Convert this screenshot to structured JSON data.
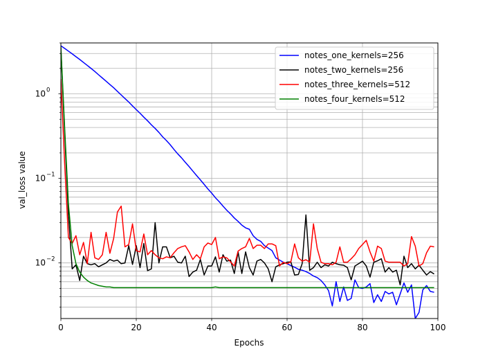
{
  "chart_data": {
    "type": "line",
    "title": "",
    "xlabel": "Epochs",
    "ylabel": "val_loss value",
    "xlim": [
      0,
      100
    ],
    "ylim": [
      0.0022,
      4.0
    ],
    "yscale": "log",
    "grid": true,
    "legend_position": "top-right",
    "xticks": [
      0,
      20,
      40,
      60,
      80,
      100
    ],
    "yticks": [
      {
        "value": 0.01,
        "base": "10",
        "exp": "−2"
      },
      {
        "value": 0.1,
        "base": "10",
        "exp": "−1"
      },
      {
        "value": 1,
        "base": "10",
        "exp": "0"
      }
    ],
    "series": [
      {
        "name": "notes_one_kernels=256",
        "color": "#0000ff",
        "x": [
          0,
          1,
          2,
          3,
          4,
          5,
          6,
          7,
          8,
          9,
          10,
          11,
          12,
          13,
          14,
          15,
          16,
          17,
          18,
          19,
          20,
          21,
          22,
          23,
          24,
          25,
          26,
          27,
          28,
          29,
          30,
          31,
          32,
          33,
          34,
          35,
          36,
          37,
          38,
          39,
          40,
          41,
          42,
          43,
          44,
          45,
          46,
          47,
          48,
          49,
          50,
          51,
          52,
          53,
          54,
          55,
          56,
          57,
          58,
          59,
          60,
          61,
          62,
          63,
          64,
          65,
          66,
          67,
          68,
          69,
          70,
          71,
          72,
          73,
          74,
          75,
          76,
          77,
          78,
          79,
          80,
          81,
          82,
          83,
          84,
          85,
          86,
          87,
          88,
          89,
          90,
          91,
          92,
          93,
          94,
          95,
          96,
          97,
          98,
          99
        ],
        "y": [
          3.7,
          3.45,
          3.2,
          2.97,
          2.75,
          2.55,
          2.35,
          2.17,
          2.0,
          1.84,
          1.68,
          1.54,
          1.41,
          1.29,
          1.18,
          1.07,
          0.97,
          0.88,
          0.8,
          0.72,
          0.65,
          0.59,
          0.53,
          0.48,
          0.43,
          0.39,
          0.35,
          0.31,
          0.28,
          0.25,
          0.22,
          0.195,
          0.175,
          0.155,
          0.138,
          0.122,
          0.108,
          0.096,
          0.085,
          0.075,
          0.067,
          0.059,
          0.053,
          0.047,
          0.042,
          0.038,
          0.034,
          0.031,
          0.028,
          0.026,
          0.025,
          0.021,
          0.019,
          0.018,
          0.016,
          0.015,
          0.014,
          0.0115,
          0.0108,
          0.0102,
          0.0098,
          0.0093,
          0.0089,
          0.0084,
          0.0082,
          0.0079,
          0.0075,
          0.007,
          0.0067,
          0.0062,
          0.0055,
          0.0047,
          0.0031,
          0.006,
          0.0035,
          0.0052,
          0.0036,
          0.0038,
          0.0063,
          0.0051,
          0.005,
          0.0052,
          0.0057,
          0.0034,
          0.0042,
          0.0035,
          0.0046,
          0.0043,
          0.0045,
          0.0032,
          0.0043,
          0.0058,
          0.0045,
          0.0055,
          0.0022,
          0.0026,
          0.0048,
          0.0054,
          0.0046,
          0.0045
        ]
      },
      {
        "name": "notes_two_kernels=256",
        "color": "#000000",
        "x": [
          0,
          1,
          2,
          3,
          4,
          5,
          6,
          7,
          8,
          9,
          10,
          11,
          12,
          13,
          14,
          15,
          16,
          17,
          18,
          19,
          20,
          21,
          22,
          23,
          24,
          25,
          26,
          27,
          28,
          29,
          30,
          31,
          32,
          33,
          34,
          35,
          36,
          37,
          38,
          39,
          40,
          41,
          42,
          43,
          44,
          45,
          46,
          47,
          48,
          49,
          50,
          51,
          52,
          53,
          54,
          55,
          56,
          57,
          58,
          59,
          60,
          61,
          62,
          63,
          64,
          65,
          66,
          67,
          68,
          69,
          70,
          71,
          72,
          73,
          74,
          75,
          76,
          77,
          78,
          79,
          80,
          81,
          82,
          83,
          84,
          85,
          86,
          87,
          88,
          89,
          90,
          91,
          92,
          93,
          94,
          95,
          96,
          97,
          98,
          99
        ],
        "y": [
          3.5,
          0.35,
          0.038,
          0.0085,
          0.0095,
          0.0062,
          0.012,
          0.0098,
          0.0095,
          0.0098,
          0.009,
          0.0095,
          0.01,
          0.011,
          0.0105,
          0.0108,
          0.0098,
          0.01,
          0.016,
          0.0096,
          0.016,
          0.0088,
          0.017,
          0.0081,
          0.0085,
          0.03,
          0.01,
          0.0155,
          0.0155,
          0.0115,
          0.012,
          0.0102,
          0.01,
          0.012,
          0.0069,
          0.0078,
          0.0082,
          0.011,
          0.0072,
          0.0092,
          0.0092,
          0.0118,
          0.0078,
          0.0125,
          0.0105,
          0.0108,
          0.0075,
          0.0135,
          0.0075,
          0.0135,
          0.0088,
          0.0072,
          0.0105,
          0.011,
          0.01,
          0.0085,
          0.006,
          0.009,
          0.0095,
          0.0098,
          0.0102,
          0.0103,
          0.0072,
          0.0073,
          0.0098,
          0.037,
          0.0082,
          0.0088,
          0.0102,
          0.0088,
          0.0095,
          0.0092,
          0.0102,
          0.0098,
          0.0095,
          0.0094,
          0.0088,
          0.0063,
          0.0092,
          0.0098,
          0.0105,
          0.0092,
          0.0068,
          0.0102,
          0.0106,
          0.0112,
          0.0078,
          0.0088,
          0.0078,
          0.0082,
          0.0055,
          0.012,
          0.0088,
          0.0098,
          0.0085,
          0.0094,
          0.0082,
          0.0072,
          0.0079,
          0.0074
        ]
      },
      {
        "name": "notes_three_kernels=512",
        "color": "#ff0000",
        "x": [
          0,
          1,
          2,
          3,
          4,
          5,
          6,
          7,
          8,
          9,
          10,
          11,
          12,
          13,
          14,
          15,
          16,
          17,
          18,
          19,
          20,
          21,
          22,
          23,
          24,
          25,
          26,
          27,
          28,
          29,
          30,
          31,
          32,
          33,
          34,
          35,
          36,
          37,
          38,
          39,
          40,
          41,
          42,
          43,
          44,
          45,
          46,
          47,
          48,
          49,
          50,
          51,
          52,
          53,
          54,
          55,
          56,
          57,
          58,
          59,
          60,
          61,
          62,
          63,
          64,
          65,
          66,
          67,
          68,
          69,
          70,
          71,
          72,
          73,
          74,
          75,
          76,
          77,
          78,
          79,
          80,
          81,
          82,
          83,
          84,
          85,
          86,
          87,
          88,
          89,
          90,
          91,
          92,
          93,
          94,
          95,
          96,
          97,
          98,
          99
        ],
        "y": [
          1.5,
          0.15,
          0.02,
          0.017,
          0.021,
          0.0125,
          0.0175,
          0.0098,
          0.023,
          0.0115,
          0.011,
          0.0125,
          0.023,
          0.013,
          0.0195,
          0.04,
          0.047,
          0.0155,
          0.0165,
          0.029,
          0.014,
          0.0135,
          0.022,
          0.0125,
          0.014,
          0.0125,
          0.0115,
          0.0112,
          0.0118,
          0.0115,
          0.0132,
          0.0148,
          0.0155,
          0.016,
          0.0135,
          0.011,
          0.0125,
          0.0112,
          0.0155,
          0.0172,
          0.0165,
          0.02,
          0.0112,
          0.0118,
          0.0115,
          0.0103,
          0.0092,
          0.0138,
          0.0148,
          0.0155,
          0.0195,
          0.0148,
          0.0162,
          0.0162,
          0.0148,
          0.0168,
          0.0168,
          0.016,
          0.0092,
          0.0102,
          0.0098,
          0.0103,
          0.0168,
          0.0115,
          0.0105,
          0.0109,
          0.0102,
          0.029,
          0.0148,
          0.0102,
          0.0098,
          0.0098,
          0.0095,
          0.0102,
          0.0155,
          0.0102,
          0.0102,
          0.0112,
          0.0125,
          0.0148,
          0.0165,
          0.0185,
          0.0135,
          0.0105,
          0.0158,
          0.0148,
          0.0105,
          0.0102,
          0.0102,
          0.0102,
          0.0102,
          0.0092,
          0.0098,
          0.0205,
          0.0158,
          0.0092,
          0.0098,
          0.0132,
          0.0158,
          0.0155
        ]
      },
      {
        "name": "notes_four_kernels=512",
        "color": "#008000",
        "x": [
          0,
          1,
          2,
          3,
          4,
          5,
          6,
          7,
          8,
          9,
          10,
          11,
          12,
          13,
          14,
          15,
          16,
          17,
          18,
          19,
          20,
          21,
          22,
          23,
          24,
          25,
          26,
          27,
          28,
          29,
          30,
          31,
          32,
          33,
          34,
          35,
          36,
          37,
          38,
          39,
          40,
          41,
          42,
          43,
          44,
          45,
          46,
          47,
          48,
          49,
          50,
          51,
          52,
          53,
          54,
          55,
          56,
          57,
          58,
          59,
          60,
          61,
          62,
          63,
          64,
          65,
          66,
          67,
          68,
          69,
          70,
          71,
          72,
          73,
          74,
          75,
          76,
          77,
          78,
          79,
          80,
          81,
          82,
          83,
          84,
          85,
          86,
          87,
          88,
          89,
          90,
          91,
          92,
          93,
          94,
          95,
          96,
          97,
          98,
          99
        ],
        "y": [
          3.6,
          0.4,
          0.05,
          0.016,
          0.0098,
          0.0078,
          0.0068,
          0.0062,
          0.0058,
          0.0056,
          0.0054,
          0.0053,
          0.0052,
          0.0052,
          0.0051,
          0.0051,
          0.0051,
          0.0051,
          0.0051,
          0.0051,
          0.0051,
          0.0051,
          0.0051,
          0.0051,
          0.0051,
          0.0051,
          0.0051,
          0.0051,
          0.0051,
          0.0051,
          0.0051,
          0.0051,
          0.0051,
          0.0051,
          0.0051,
          0.0051,
          0.0051,
          0.0051,
          0.0051,
          0.0051,
          0.0051,
          0.0052,
          0.0051,
          0.0051,
          0.0051,
          0.0051,
          0.0051,
          0.0051,
          0.0051,
          0.0051,
          0.0051,
          0.0051,
          0.0051,
          0.0051,
          0.0051,
          0.0051,
          0.0051,
          0.0051,
          0.0051,
          0.0051,
          0.0051,
          0.0051,
          0.0051,
          0.0051,
          0.0051,
          0.0051,
          0.0051,
          0.0051,
          0.0051,
          0.0051,
          0.0051,
          0.0051,
          0.0051,
          0.0051,
          0.0051,
          0.0051,
          0.0051,
          0.0051,
          0.0051,
          0.0051,
          0.0051,
          0.0051,
          0.0051,
          0.0051,
          0.0051,
          0.0051,
          0.0051,
          0.0051,
          0.0051,
          0.0051,
          0.0051,
          0.0051,
          0.0051,
          0.0051,
          0.0051,
          0.0051,
          0.0051,
          0.0051,
          0.0051,
          0.0051
        ]
      }
    ]
  }
}
